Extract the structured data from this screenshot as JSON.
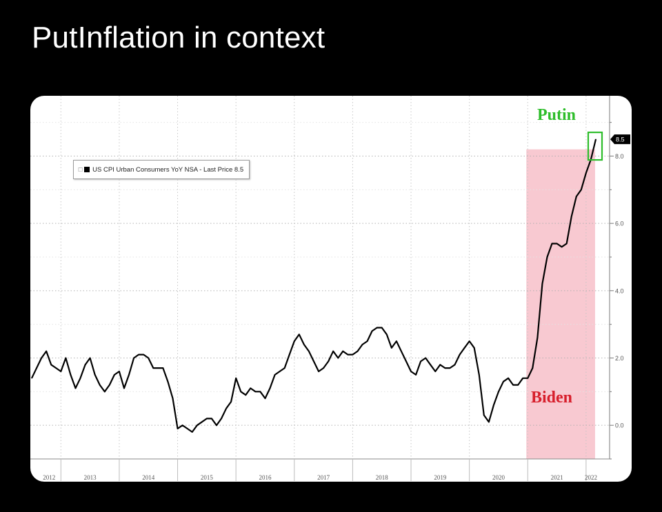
{
  "page": {
    "title": "PutInflation in context"
  },
  "chart_data": {
    "type": "line",
    "title": "",
    "xlabel": "",
    "ylabel": "",
    "x_tick_labels": [
      "2012",
      "2013",
      "2014",
      "2015",
      "2016",
      "2017",
      "2018",
      "2019",
      "2020",
      "2021",
      "2022"
    ],
    "y_ticks": [
      0,
      2,
      4,
      6,
      8
    ],
    "y_tick_labels": [
      "0.0",
      "2.0",
      "4.0",
      "6.0",
      "8.0"
    ],
    "xlim": [
      "2012-07",
      "2022-03"
    ],
    "ylim": [
      -1.0,
      9.3
    ],
    "y_axis_position": "right",
    "grid": true,
    "legend": {
      "position": "top-left",
      "text": "US CPI Urban Consumers YoY NSA - Last Price 8.5"
    },
    "last_price_tag": "8.5",
    "series": [
      {
        "name": "US CPI Urban Consumers YoY NSA",
        "color": "#000000",
        "points": [
          [
            "2012-07",
            1.4
          ],
          [
            "2012-09",
            2.0
          ],
          [
            "2012-10",
            2.2
          ],
          [
            "2012-11",
            1.8
          ],
          [
            "2012-12",
            1.7
          ],
          [
            "2013-01",
            1.6
          ],
          [
            "2013-02",
            2.0
          ],
          [
            "2013-03",
            1.5
          ],
          [
            "2013-04",
            1.1
          ],
          [
            "2013-05",
            1.4
          ],
          [
            "2013-06",
            1.8
          ],
          [
            "2013-07",
            2.0
          ],
          [
            "2013-08",
            1.5
          ],
          [
            "2013-09",
            1.2
          ],
          [
            "2013-10",
            1.0
          ],
          [
            "2013-11",
            1.2
          ],
          [
            "2013-12",
            1.5
          ],
          [
            "2014-01",
            1.6
          ],
          [
            "2014-02",
            1.1
          ],
          [
            "2014-03",
            1.5
          ],
          [
            "2014-04",
            2.0
          ],
          [
            "2014-05",
            2.1
          ],
          [
            "2014-06",
            2.1
          ],
          [
            "2014-07",
            2.0
          ],
          [
            "2014-08",
            1.7
          ],
          [
            "2014-09",
            1.7
          ],
          [
            "2014-10",
            1.7
          ],
          [
            "2014-11",
            1.3
          ],
          [
            "2014-12",
            0.8
          ],
          [
            "2015-01",
            -0.1
          ],
          [
            "2015-02",
            0.0
          ],
          [
            "2015-03",
            -0.1
          ],
          [
            "2015-04",
            -0.2
          ],
          [
            "2015-05",
            0.0
          ],
          [
            "2015-06",
            0.1
          ],
          [
            "2015-07",
            0.2
          ],
          [
            "2015-08",
            0.2
          ],
          [
            "2015-09",
            0.0
          ],
          [
            "2015-10",
            0.2
          ],
          [
            "2015-11",
            0.5
          ],
          [
            "2015-12",
            0.7
          ],
          [
            "2016-01",
            1.4
          ],
          [
            "2016-02",
            1.0
          ],
          [
            "2016-03",
            0.9
          ],
          [
            "2016-04",
            1.1
          ],
          [
            "2016-05",
            1.0
          ],
          [
            "2016-06",
            1.0
          ],
          [
            "2016-07",
            0.8
          ],
          [
            "2016-08",
            1.1
          ],
          [
            "2016-09",
            1.5
          ],
          [
            "2016-10",
            1.6
          ],
          [
            "2016-11",
            1.7
          ],
          [
            "2016-12",
            2.1
          ],
          [
            "2017-01",
            2.5
          ],
          [
            "2017-02",
            2.7
          ],
          [
            "2017-03",
            2.4
          ],
          [
            "2017-04",
            2.2
          ],
          [
            "2017-05",
            1.9
          ],
          [
            "2017-06",
            1.6
          ],
          [
            "2017-07",
            1.7
          ],
          [
            "2017-08",
            1.9
          ],
          [
            "2017-09",
            2.2
          ],
          [
            "2017-10",
            2.0
          ],
          [
            "2017-11",
            2.2
          ],
          [
            "2017-12",
            2.1
          ],
          [
            "2018-01",
            2.1
          ],
          [
            "2018-02",
            2.2
          ],
          [
            "2018-03",
            2.4
          ],
          [
            "2018-04",
            2.5
          ],
          [
            "2018-05",
            2.8
          ],
          [
            "2018-06",
            2.9
          ],
          [
            "2018-07",
            2.9
          ],
          [
            "2018-08",
            2.7
          ],
          [
            "2018-09",
            2.3
          ],
          [
            "2018-10",
            2.5
          ],
          [
            "2018-11",
            2.2
          ],
          [
            "2018-12",
            1.9
          ],
          [
            "2019-01",
            1.6
          ],
          [
            "2019-02",
            1.5
          ],
          [
            "2019-03",
            1.9
          ],
          [
            "2019-04",
            2.0
          ],
          [
            "2019-05",
            1.8
          ],
          [
            "2019-06",
            1.6
          ],
          [
            "2019-07",
            1.8
          ],
          [
            "2019-08",
            1.7
          ],
          [
            "2019-09",
            1.7
          ],
          [
            "2019-10",
            1.8
          ],
          [
            "2019-11",
            2.1
          ],
          [
            "2019-12",
            2.3
          ],
          [
            "2020-01",
            2.5
          ],
          [
            "2020-02",
            2.3
          ],
          [
            "2020-03",
            1.5
          ],
          [
            "2020-04",
            0.3
          ],
          [
            "2020-05",
            0.1
          ],
          [
            "2020-06",
            0.6
          ],
          [
            "2020-07",
            1.0
          ],
          [
            "2020-08",
            1.3
          ],
          [
            "2020-09",
            1.4
          ],
          [
            "2020-10",
            1.2
          ],
          [
            "2020-11",
            1.2
          ],
          [
            "2020-12",
            1.4
          ],
          [
            "2021-01",
            1.4
          ],
          [
            "2021-02",
            1.7
          ],
          [
            "2021-03",
            2.6
          ],
          [
            "2021-04",
            4.2
          ],
          [
            "2021-05",
            5.0
          ],
          [
            "2021-06",
            5.4
          ],
          [
            "2021-07",
            5.4
          ],
          [
            "2021-08",
            5.3
          ],
          [
            "2021-09",
            5.4
          ],
          [
            "2021-10",
            6.2
          ],
          [
            "2021-11",
            6.8
          ],
          [
            "2021-12",
            7.0
          ],
          [
            "2022-01",
            7.5
          ],
          [
            "2022-02",
            7.9
          ],
          [
            "2022-03",
            8.5
          ]
        ]
      }
    ],
    "shaded_regions": [
      {
        "start": "2021-01",
        "end": "2022-02",
        "color": "#f8c9d1",
        "label": "Biden",
        "label_color": "#d71f2c"
      }
    ],
    "highlight_box": {
      "at": "2022-03",
      "label": "Putin",
      "color": "#2dbd2a"
    }
  }
}
